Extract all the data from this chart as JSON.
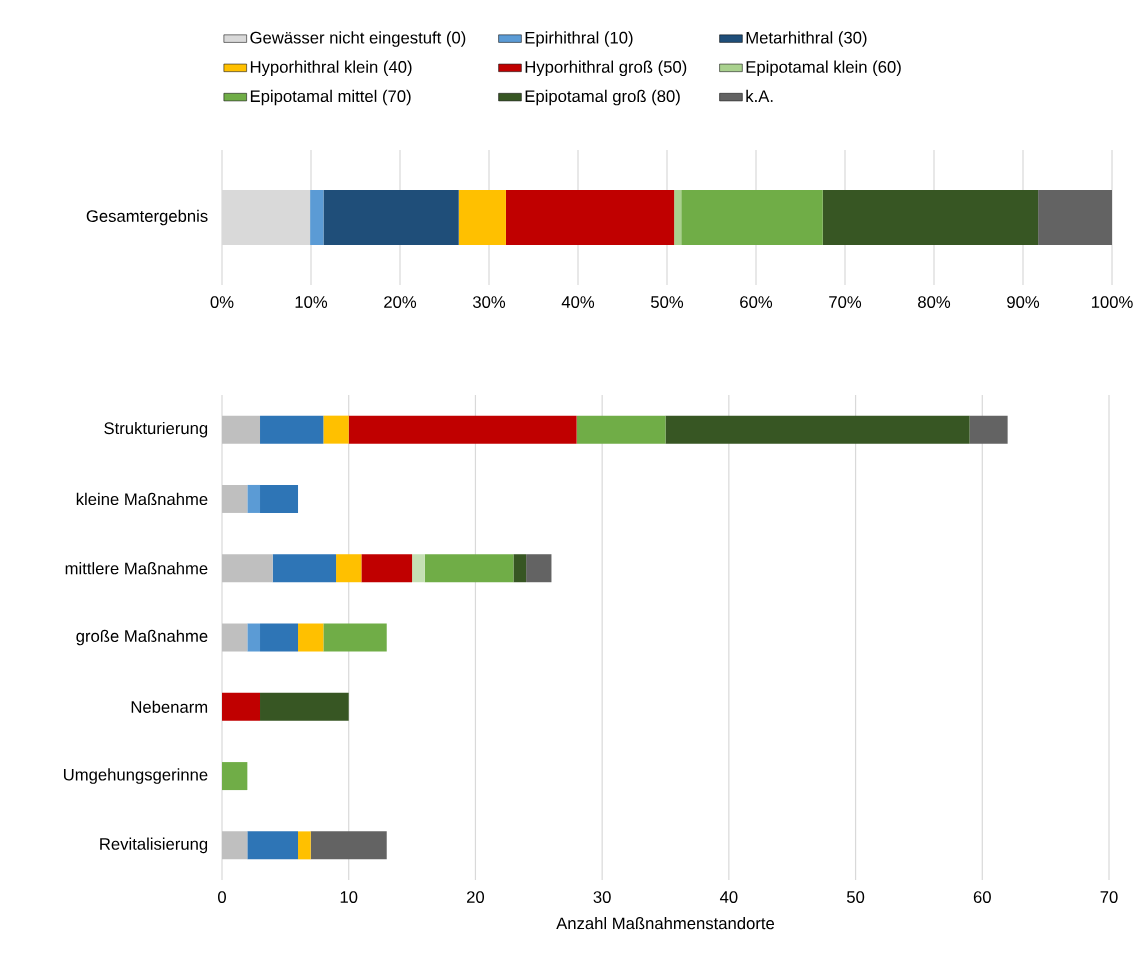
{
  "chart_data": [
    {
      "type": "bar",
      "orientation": "horizontal",
      "stacked": true,
      "categories": [
        "Gesamtergebnis"
      ],
      "legend": "top",
      "grid": "x",
      "xlim": [
        0,
        100
      ],
      "xticks": [
        {
          "value": 0,
          "label": "0%"
        },
        {
          "value": 10,
          "label": "10%"
        },
        {
          "value": 20,
          "label": "20%"
        },
        {
          "value": 30,
          "label": "30%"
        },
        {
          "value": 40,
          "label": "40%"
        },
        {
          "value": 50,
          "label": "50%"
        },
        {
          "value": 60,
          "label": "60%"
        },
        {
          "value": 70,
          "label": "70%"
        },
        {
          "value": 80,
          "label": "80%"
        },
        {
          "value": 90,
          "label": "90%"
        },
        {
          "value": 100,
          "label": "100%"
        }
      ],
      "series": [
        {
          "name": "Gewässer nicht eingestuft (0)",
          "color": "#d9d9d9",
          "values": [
            9.9
          ]
        },
        {
          "name": "Epirhithral (10)",
          "color": "#5b9bd5",
          "values": [
            1.5
          ]
        },
        {
          "name": "Metarhithral (30)",
          "color": "#1f4e79",
          "values": [
            15.2
          ]
        },
        {
          "name": "Hyporhithral klein (40)",
          "color": "#ffc000",
          "values": [
            5.3
          ]
        },
        {
          "name": "Hyporhithral groß (50)",
          "color": "#c00000",
          "values": [
            18.9
          ]
        },
        {
          "name": "Epipotamal klein (60)",
          "color": "#a9d18e",
          "values": [
            0.8
          ]
        },
        {
          "name": "Epipotamal mittel (70)",
          "color": "#70ad47",
          "values": [
            15.9
          ]
        },
        {
          "name": "Epipotamal groß (80)",
          "color": "#375623",
          "values": [
            24.2
          ]
        },
        {
          "name": "k.A.",
          "color": "#636363",
          "values": [
            8.3
          ]
        }
      ]
    },
    {
      "type": "bar",
      "orientation": "horizontal",
      "stacked": true,
      "categories": [
        "Strukturierung",
        "kleine Maßnahme",
        "mittlere Maßnahme",
        "große Maßnahme",
        "Nebenarm",
        "Umgehungsgerinne",
        "Revitalisierung"
      ],
      "grid": "x",
      "xlim": [
        0,
        70
      ],
      "xticks": [
        0,
        10,
        20,
        30,
        40,
        50,
        60,
        70
      ],
      "xlabel": "Anzahl Maßnahmenstandorte",
      "series": [
        {
          "color": "#bfbfbf",
          "values": [
            3,
            2,
            4,
            2,
            0,
            0,
            2
          ]
        },
        {
          "color": "#5b9bd5",
          "values": [
            0,
            1,
            0,
            1,
            0,
            0,
            0
          ]
        },
        {
          "color": "#2e75b6",
          "values": [
            5,
            3,
            5,
            3,
            0,
            0,
            4
          ]
        },
        {
          "color": "#ffc000",
          "values": [
            2,
            0,
            2,
            2,
            0,
            0,
            1
          ]
        },
        {
          "color": "#c00000",
          "values": [
            18,
            0,
            4,
            0,
            3,
            0,
            0
          ]
        },
        {
          "color": "#c5e0b4",
          "values": [
            0,
            0,
            1,
            0,
            0,
            0,
            0
          ]
        },
        {
          "color": "#70ad47",
          "values": [
            7,
            0,
            7,
            5,
            0,
            2,
            0
          ]
        },
        {
          "color": "#375623",
          "values": [
            24,
            0,
            1,
            0,
            7,
            0,
            0
          ]
        },
        {
          "color": "#636363",
          "values": [
            3,
            0,
            2,
            0,
            0,
            0,
            6
          ]
        }
      ]
    }
  ]
}
